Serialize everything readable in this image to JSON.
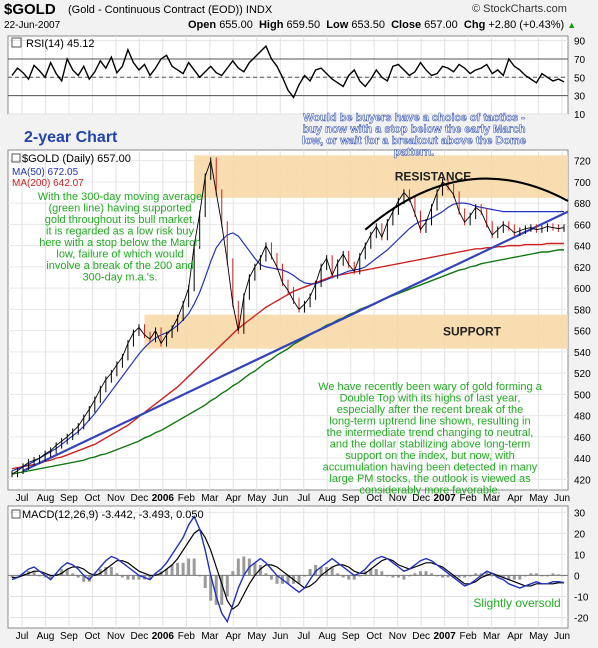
{
  "header": {
    "symbol": "$GOLD",
    "subtitle": "(Gold - Continuous Contract (EOD)) INDX",
    "date": "22-Jun-2007",
    "brand": "© StockCharts.com",
    "open_label": "Open",
    "open": "655.00",
    "high_label": "High",
    "high": "659.50",
    "low_label": "Low",
    "low": "653.50",
    "close_label": "Close",
    "close": "657.00",
    "chg_label": "Chg",
    "chg": "+2.80 (+0.43%)",
    "chg_icon": "up-triangle-icon"
  },
  "colors": {
    "price": "#000000",
    "ma50": "#2233bb",
    "ma200": "#cc2222",
    "ma300": "#117711",
    "trendline": "#3344bb",
    "zone": "#f7d9a8",
    "annotation": "#22aa22",
    "annotation_blue": "#2244aa",
    "panel_bg": "#ffffff",
    "page_bg": "#f2f2f2"
  },
  "chart_data": [
    {
      "type": "line",
      "panel": "rsi",
      "label": "RSI(14) 45.12",
      "y_ticks": [
        10,
        30,
        50,
        70,
        90
      ],
      "ylim": [
        10,
        95
      ],
      "reference_lines": [
        30,
        50,
        70
      ],
      "series": [
        {
          "name": "RSI(14)",
          "values": [
            52,
            60,
            55,
            48,
            63,
            57,
            50,
            66,
            54,
            46,
            70,
            58,
            52,
            62,
            48,
            56,
            68,
            60,
            72,
            55,
            62,
            80,
            66,
            58,
            64,
            52,
            60,
            70,
            74,
            62,
            58,
            54,
            66,
            58,
            50,
            56,
            62,
            55,
            52,
            60,
            68,
            60,
            56,
            66,
            72,
            78,
            84,
            70,
            62,
            50,
            36,
            28,
            42,
            52,
            46,
            58,
            60,
            54,
            48,
            44,
            40,
            52,
            58,
            46,
            40,
            48,
            58,
            50,
            46,
            62,
            64,
            58,
            52,
            56,
            66,
            58,
            52,
            54,
            62,
            60,
            56,
            64,
            60,
            54,
            58,
            60,
            64,
            54,
            58,
            52,
            70,
            62,
            58,
            52,
            48,
            44,
            54,
            50,
            46,
            48,
            45
          ]
        }
      ]
    },
    {
      "type": "line",
      "panel": "price",
      "title": "$GOLD (Daily) 657.00",
      "chart_label": "2-year Chart",
      "legend": [
        {
          "name": "$GOLD (Daily) 657.00"
        },
        {
          "name": "MA(50) 672.05"
        },
        {
          "name": "MA(200) 642.07"
        }
      ],
      "y_ticks": [
        420,
        440,
        460,
        480,
        500,
        520,
        540,
        560,
        580,
        600,
        620,
        640,
        660,
        680,
        700,
        720
      ],
      "ylim": [
        410,
        730
      ],
      "x_tick_labels": [
        "Jul",
        "Aug",
        "Sep",
        "Oct",
        "Nov",
        "Dec",
        "2006",
        "Feb",
        "Mar",
        "Apr",
        "May",
        "Jun",
        "Jul",
        "Aug",
        "Sep",
        "Oct",
        "Nov",
        "Dec",
        "2007",
        "Feb",
        "Mar",
        "Apr",
        "May",
        "Jun"
      ],
      "series": [
        {
          "name": "$GOLD (Daily)",
          "values": [
            425,
            428,
            432,
            436,
            438,
            440,
            444,
            447,
            452,
            456,
            460,
            465,
            470,
            478,
            486,
            495,
            505,
            514,
            520,
            528,
            535,
            548,
            558,
            563,
            556,
            552,
            560,
            548,
            556,
            562,
            572,
            585,
            600,
            640,
            670,
            705,
            720,
            690,
            660,
            625,
            585,
            560,
            592,
            610,
            620,
            628,
            640,
            630,
            620,
            605,
            598,
            588,
            580,
            585,
            592,
            604,
            620,
            628,
            612,
            624,
            632,
            622,
            616,
            630,
            640,
            650,
            658,
            648,
            662,
            672,
            682,
            690,
            684,
            670,
            655,
            662,
            676,
            690,
            700,
            695,
            688,
            672,
            662,
            668,
            676,
            672,
            660,
            650,
            655,
            660,
            657,
            652,
            654,
            656,
            657,
            655,
            656,
            658,
            657,
            656,
            657
          ]
        },
        {
          "name": "MA(50)",
          "values": [
            428,
            430,
            432,
            434,
            437,
            440,
            443,
            446,
            449,
            453,
            457,
            461,
            465,
            470,
            476,
            482,
            489,
            496,
            503,
            510,
            517,
            524,
            531,
            538,
            544,
            549,
            553,
            556,
            558,
            561,
            565,
            570,
            576,
            585,
            596,
            610,
            625,
            638,
            645,
            650,
            652,
            649,
            642,
            635,
            628,
            622,
            620,
            619,
            618,
            617,
            615,
            612,
            608,
            605,
            604,
            604,
            606,
            608,
            610,
            612,
            614,
            616,
            617,
            618,
            620,
            624,
            628,
            632,
            636,
            641,
            646,
            651,
            656,
            660,
            663,
            664,
            666,
            669,
            672,
            676,
            679,
            680,
            680,
            679,
            677,
            676,
            675,
            674,
            673,
            672,
            672,
            672,
            672,
            672,
            672,
            672,
            672,
            672,
            672,
            672,
            672
          ]
        },
        {
          "name": "MA(200)",
          "values": [
            430,
            431,
            432,
            433,
            434,
            435,
            437,
            438,
            440,
            441,
            443,
            445,
            447,
            449,
            451,
            453,
            456,
            459,
            462,
            465,
            468,
            471,
            475,
            479,
            483,
            487,
            491,
            495,
            499,
            503,
            507,
            512,
            517,
            522,
            527,
            532,
            537,
            542,
            547,
            552,
            557,
            562,
            566,
            570,
            574,
            578,
            582,
            585,
            588,
            591,
            594,
            597,
            599,
            601,
            603,
            605,
            607,
            609,
            611,
            612,
            613,
            614,
            615,
            616,
            617,
            618,
            619,
            620,
            621,
            622,
            623,
            624,
            625,
            626,
            627,
            628,
            629,
            630,
            631,
            632,
            633,
            634,
            635,
            636,
            637,
            637,
            638,
            638,
            639,
            639,
            640,
            640,
            640,
            641,
            641,
            641,
            641,
            642,
            642,
            642,
            642
          ]
        },
        {
          "name": "MA(300)",
          "values": [
            425,
            426,
            427,
            428,
            429,
            430,
            431,
            432,
            433,
            434,
            435,
            436,
            437,
            438,
            440,
            441,
            443,
            444,
            446,
            448,
            450,
            452,
            454,
            456,
            459,
            461,
            464,
            466,
            469,
            472,
            475,
            478,
            481,
            484,
            487,
            490,
            494,
            497,
            501,
            504,
            508,
            511,
            515,
            519,
            522,
            526,
            530,
            533,
            537,
            540,
            543,
            547,
            550,
            553,
            556,
            559,
            562,
            565,
            567,
            570,
            572,
            575,
            577,
            580,
            582,
            584,
            586,
            589,
            591,
            593,
            595,
            597,
            599,
            601,
            603,
            605,
            607,
            609,
            611,
            613,
            615,
            617,
            618,
            620,
            621,
            623,
            624,
            625,
            626,
            627,
            628,
            629,
            630,
            631,
            632,
            633,
            634,
            634,
            635,
            636,
            636
          ]
        }
      ],
      "zones": [
        {
          "label": "RESISTANCE",
          "from": 685,
          "to": 725
        },
        {
          "label": "SUPPORT",
          "from": 543,
          "to": 575
        }
      ]
    },
    {
      "type": "line",
      "panel": "macd",
      "label": "MACD(12,26,9) -3.442, -3.493, 0.050",
      "y_ticks": [
        -20,
        -10,
        0,
        10,
        20,
        30
      ],
      "ylim": [
        -25,
        33
      ],
      "series": [
        {
          "name": "MACD",
          "values": [
            -2,
            -1,
            1,
            3,
            4,
            2,
            0,
            -2,
            1,
            4,
            6,
            5,
            3,
            0,
            -2,
            1,
            4,
            7,
            9,
            8,
            6,
            4,
            2,
            0,
            -1,
            -2,
            1,
            3,
            6,
            10,
            14,
            18,
            24,
            28,
            22,
            12,
            0,
            -10,
            -18,
            -22,
            -14,
            -6,
            0,
            4,
            6,
            8,
            6,
            3,
            0,
            -2,
            -4,
            -6,
            -8,
            -6,
            -2,
            2,
            4,
            6,
            8,
            6,
            4,
            2,
            0,
            1,
            3,
            6,
            8,
            9,
            8,
            6,
            4,
            2,
            3,
            5,
            7,
            8,
            7,
            5,
            3,
            1,
            -1,
            -3,
            -5,
            -4,
            -2,
            0,
            2,
            1,
            -1,
            -2,
            -4,
            -5,
            -6,
            -5,
            -4,
            -3,
            -4,
            -4,
            -3,
            -3,
            -3.4
          ]
        },
        {
          "name": "Signal",
          "values": [
            -1,
            -1,
            0,
            1,
            2,
            2,
            1,
            0,
            0,
            1,
            3,
            4,
            4,
            3,
            1,
            0,
            1,
            3,
            5,
            7,
            7,
            6,
            4,
            2,
            1,
            0,
            0,
            1,
            3,
            5,
            8,
            12,
            16,
            20,
            22,
            18,
            12,
            4,
            -4,
            -12,
            -16,
            -14,
            -9,
            -4,
            0,
            3,
            5,
            5,
            4,
            2,
            0,
            -2,
            -4,
            -6,
            -5,
            -3,
            0,
            2,
            4,
            5,
            5,
            4,
            2,
            1,
            1,
            3,
            5,
            7,
            8,
            7,
            5,
            4,
            3,
            4,
            5,
            6,
            6,
            5,
            4,
            2,
            0,
            -2,
            -4,
            -4,
            -3,
            -1,
            0,
            1,
            0,
            -1,
            -2,
            -3,
            -4,
            -5,
            -5,
            -4,
            -4,
            -4,
            -4,
            -3.5,
            -3.5
          ]
        }
      ]
    }
  ],
  "annotations": {
    "tactics": "Would be buyers have a choice of tactics - buy now with a stop below the early March low, or wait for a breakout above the Dome pattern.",
    "ma300": "With the 300-day moving average (green line) having supported gold throughout its bull market, it is regarded as a low risk buy here with a stop below the March low, failure of which would involve a break of the 200 and 300-day m.a.'s.",
    "outlook": "We have recently been wary of gold forming a Double Top with its highs of last year, especially after the recent break of the long-term uptrend line shown, resulting in the intermediate trend changing to neutral, and the dollar stabilizing above long-term support on the index, but now, with accumulation having been detected in many large PM stocks, the outlook is viewed as considerably more favorable.",
    "oversold": "Slightly oversold"
  }
}
